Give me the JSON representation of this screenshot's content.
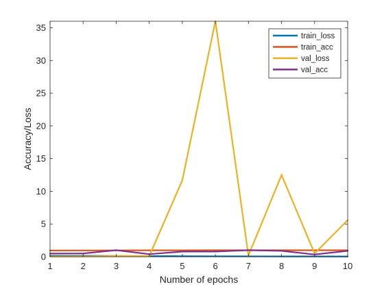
{
  "chart_data": {
    "type": "line",
    "title": "",
    "xlabel": "Number of epochs",
    "ylabel": "Accuracy/Loss",
    "xlim": [
      1,
      10
    ],
    "ylim": [
      0,
      36
    ],
    "xticks": [
      1,
      2,
      3,
      4,
      5,
      6,
      7,
      8,
      9,
      10
    ],
    "yticks": [
      0,
      5,
      10,
      15,
      20,
      25,
      30,
      35
    ],
    "grid": false,
    "legend_position": "top-right",
    "x": [
      1,
      2,
      3,
      4,
      5,
      6,
      7,
      8,
      9,
      10
    ],
    "series": [
      {
        "name": "train_loss",
        "color": "#0072BD",
        "values": [
          0.18,
          0.15,
          0.12,
          0.1,
          0.08,
          0.07,
          0.06,
          0.05,
          0.05,
          0.04
        ]
      },
      {
        "name": "train_acc",
        "color": "#D95319",
        "values": [
          0.95,
          0.96,
          0.97,
          0.98,
          0.98,
          0.99,
          0.99,
          0.99,
          0.99,
          0.99
        ]
      },
      {
        "name": "val_loss",
        "color": "#EDB120",
        "values": [
          0.05,
          0.05,
          0.1,
          0.1,
          11.7,
          36.0,
          0.2,
          12.5,
          0.5,
          5.6
        ]
      },
      {
        "name": "val_acc",
        "color": "#7E2F8E",
        "values": [
          0.5,
          0.5,
          1.0,
          0.4,
          0.8,
          0.8,
          1.0,
          0.9,
          0.35,
          0.9
        ]
      }
    ]
  }
}
